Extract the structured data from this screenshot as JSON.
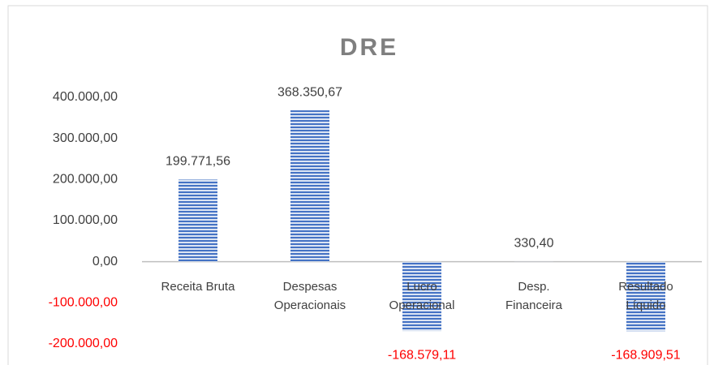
{
  "chart_data": {
    "type": "bar",
    "title": "DRE",
    "categories": [
      "Receita Bruta",
      "Despesas Operacionais",
      "Lucro Operacional",
      "Desp. Financeira",
      "Resultado Líquido"
    ],
    "values": [
      199771.56,
      368350.67,
      -168579.11,
      330.4,
      -168909.51
    ],
    "value_labels": [
      "199.771,56",
      "368.350,67",
      "-168.579,11",
      "330,40",
      "-168.909,51"
    ],
    "color": "#4472c4",
    "negative_color": "#ff0000",
    "ylim": [
      -200000,
      400000
    ],
    "yticks": [
      {
        "value": -200000,
        "label": "-200.000,00"
      },
      {
        "value": -100000,
        "label": "-100.000,00"
      },
      {
        "value": 0,
        "label": "0,00"
      },
      {
        "value": 100000,
        "label": "100.000,00"
      },
      {
        "value": 200000,
        "label": "200.000,00"
      },
      {
        "value": 300000,
        "label": "300.000,00"
      },
      {
        "value": 400000,
        "label": "400.000,00"
      }
    ]
  }
}
